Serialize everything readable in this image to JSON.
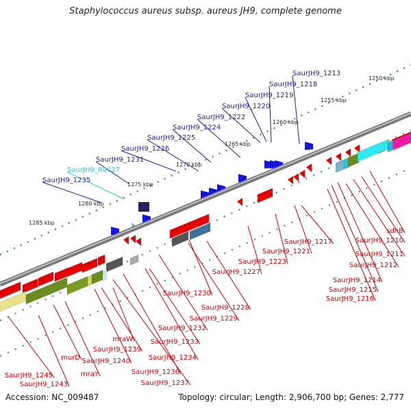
{
  "title": "Staphylococcus aureus subsp. aureus JH9, complete genome",
  "footer": {
    "accession": "Accession: NC_009487",
    "summary": "Topology: circular; Length: 2,906,700 bp; Genes: 2,777"
  },
  "colors": {
    "forward_label": "#1a1aa8",
    "rna_label": "#33c0d0",
    "reverse_label": "#cc0000",
    "backbone": "#7a7a7a",
    "cds": "#e60000",
    "forward_gene": "#1414e0"
  },
  "ticks": [
    "1250 kbp",
    "1255 kbp",
    "1260 kbp",
    "1265 kbp",
    "1270 kbp",
    "1275 kbp",
    "1280 kbp",
    "1285 kbp"
  ],
  "labels_top": [
    "SaurJH9_1213",
    "SaurJH9_1218",
    "SaurJH9_1219",
    "SaurJH9_1220",
    "SaurJH9_1222",
    "SaurJH9_1224",
    "SaurJH9_1225",
    "SaurJH9_1226",
    "SaurJH9_1231",
    "SaurJH9_R0027",
    "SaurJH9_1235"
  ],
  "labels_bottom": [
    "sdhB",
    "SaurJH9_1210",
    "SaurJH9_1211",
    "SaurJH9_1212",
    "SaurJH9_1214",
    "SaurJH9_1215",
    "SaurJH9_1216",
    "SaurJH9_1217",
    "SaurJH9_1221",
    "SaurJH9_1223",
    "SaurJH9_1227",
    "SaurJH9_1230",
    "SaurJH9_1228",
    "SaurJH9_1229",
    "SaurJH9_1232",
    "SaurJH9_1233",
    "SaurJH9_1234",
    "mraW",
    "SaurJH9_1239",
    "SaurJH9_1240",
    "SaurJH9_1236",
    "SaurJH9_1237",
    "mraY",
    "murD",
    "SaurJH9_1243",
    "SaurJH9_1245"
  ]
}
